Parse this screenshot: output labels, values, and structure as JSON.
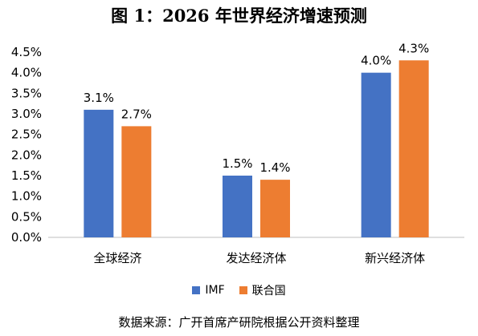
{
  "chart_data": {
    "type": "bar",
    "title": "图 1：2026 年世界经济增速预测",
    "categories": [
      "全球经济",
      "发达经济体",
      "新兴经济体"
    ],
    "series": [
      {
        "name": "IMF",
        "color": "#4472C4",
        "values": [
          3.1,
          1.5,
          4.0
        ],
        "labels": [
          "3.1%",
          "1.5%",
          "4.0%"
        ]
      },
      {
        "name": "联合国",
        "color": "#ED7D31",
        "values": [
          2.7,
          1.4,
          4.3
        ],
        "labels": [
          "2.7%",
          "1.4%",
          "4.3%"
        ]
      }
    ],
    "yticks": [
      "0.0%",
      "0.5%",
      "1.0%",
      "1.5%",
      "2.0%",
      "2.5%",
      "3.0%",
      "3.5%",
      "4.0%",
      "4.5%"
    ],
    "ylim": [
      0,
      4.5
    ],
    "xlabel": "",
    "ylabel": "",
    "grid": false,
    "legend_position": "bottom",
    "source": "数据来源：广开首席产研院根据公开资料整理"
  }
}
